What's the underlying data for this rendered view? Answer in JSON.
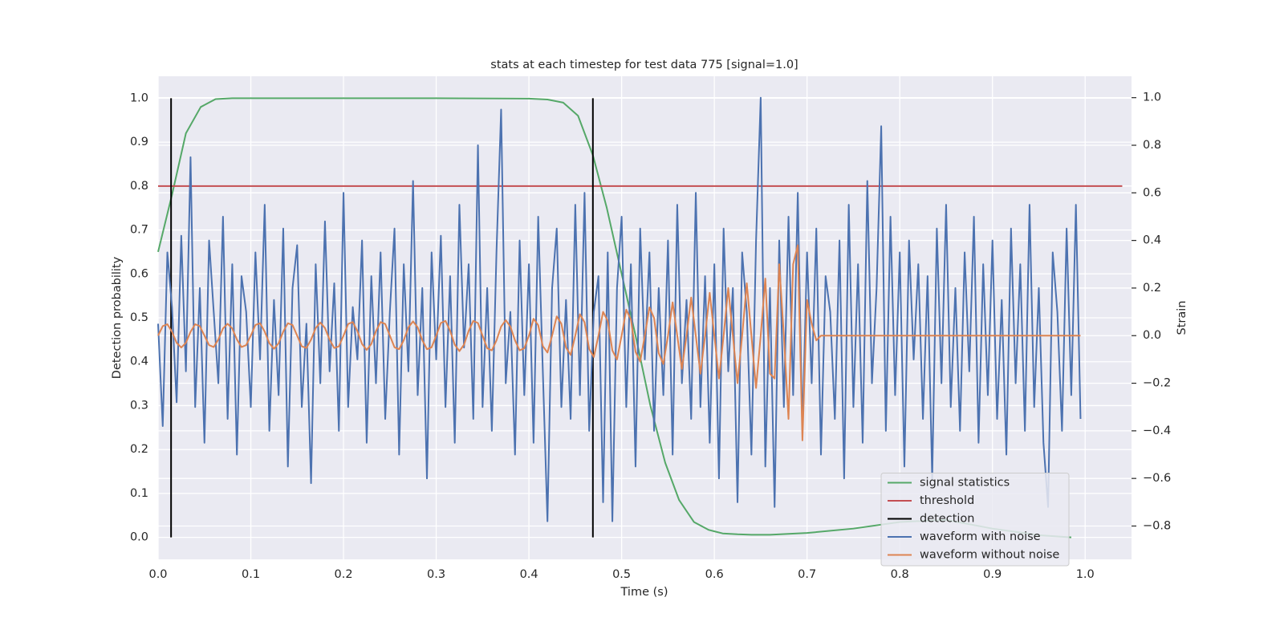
{
  "chart_data": {
    "type": "line",
    "title": "stats at each timestep for test data 775 [signal=1.0]",
    "xlabel": "Time (s)",
    "ylabel": "Detection probability",
    "y2label": "Strain",
    "xlim": [
      0,
      1.05
    ],
    "ylim": [
      -0.05,
      1.05
    ],
    "y2lim": [
      -0.94,
      1.09
    ],
    "xticks": [
      {
        "value": 0,
        "label": "0.0"
      },
      {
        "value": 0.1,
        "label": "0.1"
      },
      {
        "value": 0.2,
        "label": "0.2"
      },
      {
        "value": 0.3,
        "label": "0.3"
      },
      {
        "value": 0.4,
        "label": "0.4"
      },
      {
        "value": 0.5,
        "label": "0.5"
      },
      {
        "value": 0.6,
        "label": "0.6"
      },
      {
        "value": 0.7,
        "label": "0.7"
      },
      {
        "value": 0.8,
        "label": "0.8"
      },
      {
        "value": 0.9,
        "label": "0.9"
      },
      {
        "value": 1,
        "label": "1.0"
      }
    ],
    "yticks": [
      {
        "value": 0,
        "label": "0.0"
      },
      {
        "value": 0.1,
        "label": "0.1"
      },
      {
        "value": 0.2,
        "label": "0.2"
      },
      {
        "value": 0.3,
        "label": "0.3"
      },
      {
        "value": 0.4,
        "label": "0.4"
      },
      {
        "value": 0.5,
        "label": "0.5"
      },
      {
        "value": 0.6,
        "label": "0.6"
      },
      {
        "value": 0.7,
        "label": "0.7"
      },
      {
        "value": 0.8,
        "label": "0.8"
      },
      {
        "value": 0.9,
        "label": "0.9"
      },
      {
        "value": 1,
        "label": "1.0"
      }
    ],
    "y2ticks": [
      {
        "value": -0.8,
        "label": "−0.8"
      },
      {
        "value": -0.6,
        "label": "−0.6"
      },
      {
        "value": -0.4,
        "label": "−0.4"
      },
      {
        "value": -0.2,
        "label": "−0.2"
      },
      {
        "value": 0,
        "label": "0.0"
      },
      {
        "value": 0.2,
        "label": "0.2"
      },
      {
        "value": 0.4,
        "label": "0.4"
      },
      {
        "value": 0.6,
        "label": "0.6"
      },
      {
        "value": 0.8,
        "label": "0.8"
      },
      {
        "value": 1,
        "label": "1.0"
      }
    ],
    "grid": true,
    "legend": "lower right",
    "x": [
      0,
      0.005,
      0.01,
      0.015,
      0.02,
      0.025,
      0.03,
      0.035,
      0.04,
      0.045,
      0.05,
      0.055,
      0.06,
      0.065,
      0.07,
      0.075,
      0.08,
      0.085,
      0.09,
      0.095,
      0.1,
      0.105,
      0.11,
      0.115,
      0.12,
      0.125,
      0.13,
      0.135,
      0.14,
      0.145,
      0.15,
      0.155,
      0.16,
      0.165,
      0.17,
      0.175,
      0.18,
      0.185,
      0.19,
      0.195,
      0.2,
      0.205,
      0.21,
      0.215,
      0.22,
      0.225,
      0.23,
      0.235,
      0.24,
      0.245,
      0.25,
      0.255,
      0.26,
      0.265,
      0.27,
      0.275,
      0.28,
      0.285,
      0.29,
      0.295,
      0.3,
      0.305,
      0.31,
      0.315,
      0.32,
      0.325,
      0.33,
      0.335,
      0.34,
      0.345,
      0.35,
      0.355,
      0.36,
      0.365,
      0.37,
      0.375,
      0.38,
      0.385,
      0.39,
      0.395,
      0.4,
      0.405,
      0.41,
      0.415,
      0.42,
      0.425,
      0.43,
      0.435,
      0.44,
      0.445,
      0.45,
      0.455,
      0.46,
      0.465,
      0.47,
      0.475,
      0.48,
      0.485,
      0.49,
      0.495,
      0.5,
      0.505,
      0.51,
      0.515,
      0.52,
      0.525,
      0.53,
      0.535,
      0.54,
      0.545,
      0.55,
      0.555,
      0.56,
      0.565,
      0.57,
      0.575,
      0.58,
      0.585,
      0.59,
      0.595,
      0.6,
      0.605,
      0.61,
      0.615,
      0.62,
      0.625,
      0.63,
      0.635,
      0.64,
      0.645,
      0.65,
      0.655,
      0.66,
      0.665,
      0.67,
      0.675,
      0.68,
      0.685,
      0.69,
      0.695,
      0.7,
      0.705,
      0.71,
      0.715,
      0.72,
      0.725,
      0.73,
      0.735,
      0.74,
      0.745,
      0.75,
      0.755,
      0.76,
      0.765,
      0.77,
      0.775,
      0.78,
      0.785,
      0.79,
      0.795,
      0.8,
      0.805,
      0.81,
      0.815,
      0.82,
      0.825,
      0.83,
      0.835,
      0.84,
      0.845,
      0.85,
      0.855,
      0.86,
      0.865,
      0.87,
      0.875,
      0.88,
      0.885,
      0.89,
      0.895,
      0.9,
      0.905,
      0.91,
      0.915,
      0.92,
      0.925,
      0.93,
      0.935,
      0.94,
      0.945,
      0.95,
      0.955,
      0.96,
      0.965,
      0.97,
      0.975,
      0.98,
      0.985,
      0.99,
      0.995
    ],
    "series": [
      {
        "name": "signal statistics",
        "color": "#55a868",
        "x": [
          0,
          0.015,
          0.03,
          0.046,
          0.062,
          0.08,
          0.1,
          0.2,
          0.3,
          0.4,
          0.42,
          0.437,
          0.453,
          0.469,
          0.484,
          0.5,
          0.516,
          0.531,
          0.547,
          0.562,
          0.578,
          0.594,
          0.609,
          0.625,
          0.64,
          0.66,
          0.7,
          0.75,
          0.8,
          0.85,
          0.9,
          0.95,
          0.985
        ],
        "values": [
          0.65,
          0.78,
          0.92,
          0.98,
          0.998,
          1.0,
          1.0,
          1.0,
          1.0,
          0.999,
          0.997,
          0.99,
          0.96,
          0.87,
          0.75,
          0.6,
          0.45,
          0.3,
          0.17,
          0.085,
          0.035,
          0.017,
          0.009,
          0.007,
          0.006,
          0.006,
          0.01,
          0.02,
          0.035,
          0.04,
          0.02,
          0.005,
          0.0
        ]
      },
      {
        "name": "threshold",
        "color": "#c44e52",
        "x": [
          0,
          1.04
        ],
        "values": [
          0.8,
          0.8
        ]
      },
      {
        "name": "detection",
        "color": "#000000",
        "kind": "vlines",
        "x": [
          0.014,
          0.469
        ],
        "ymin": 0,
        "ymax": 1
      },
      {
        "name": "waveform with noise",
        "color": "#4c72b0",
        "axis": "y2",
        "values": [
          0.05,
          -0.38,
          0.35,
          0.12,
          -0.28,
          0.42,
          -0.15,
          0.75,
          -0.3,
          0.2,
          -0.45,
          0.4,
          0.1,
          -0.2,
          0.5,
          -0.35,
          0.3,
          -0.5,
          0.25,
          0.1,
          -0.3,
          0.35,
          -0.1,
          0.55,
          -0.4,
          0.15,
          -0.25,
          0.45,
          -0.55,
          0.2,
          0.38,
          -0.3,
          0.05,
          -0.62,
          0.3,
          -0.2,
          0.48,
          -0.15,
          0.22,
          -0.4,
          0.6,
          -0.3,
          0.12,
          -0.1,
          0.4,
          -0.45,
          0.25,
          -0.2,
          0.35,
          -0.35,
          0.1,
          0.45,
          -0.5,
          0.3,
          -0.15,
          0.65,
          -0.25,
          0.2,
          -0.6,
          0.35,
          -0.1,
          0.42,
          -0.3,
          0.25,
          -0.45,
          0.55,
          -0.05,
          0.3,
          -0.35,
          0.8,
          -0.3,
          0.2,
          -0.4,
          0.35,
          0.95,
          -0.2,
          0.1,
          -0.5,
          0.4,
          -0.25,
          0.3,
          -0.45,
          0.5,
          -0.15,
          -0.78,
          0.2,
          0.45,
          -0.3,
          0.15,
          -0.35,
          0.55,
          -0.25,
          0.6,
          -0.4,
          0.1,
          0.25,
          -0.7,
          0.35,
          -0.78,
          0.2,
          0.5,
          -0.3,
          0.3,
          -0.55,
          0.45,
          -0.1,
          0.35,
          -0.4,
          0.2,
          -0.25,
          0.4,
          -0.5,
          0.55,
          -0.2,
          0.15,
          -0.35,
          0.6,
          -0.3,
          0.25,
          -0.45,
          0.3,
          -0.6,
          0.45,
          -0.15,
          0.2,
          -0.7,
          0.35,
          0.1,
          -0.5,
          0.4,
          1.0,
          -0.55,
          0.2,
          -0.72,
          0.4,
          -0.3,
          0.5,
          -0.25,
          0.6,
          -0.4,
          0.35,
          -0.2,
          0.45,
          -0.5,
          0.25,
          0.1,
          -0.35,
          0.4,
          -0.6,
          0.55,
          -0.3,
          0.3,
          -0.45,
          0.65,
          -0.2,
          0.2,
          0.88,
          -0.4,
          0.5,
          -0.25,
          0.35,
          -0.55,
          0.4,
          -0.1,
          0.3,
          -0.35,
          0.25,
          -0.6,
          0.45,
          -0.2,
          0.55,
          -0.3,
          0.2,
          -0.4,
          0.35,
          -0.15,
          0.5,
          -0.45,
          0.3,
          -0.25,
          0.4,
          -0.35,
          0.15,
          -0.5,
          0.45,
          -0.2,
          0.3,
          -0.4,
          0.55,
          -0.3,
          0.2,
          -0.45,
          -0.72,
          0.35,
          0.1,
          -0.4,
          0.45,
          -0.25,
          0.55,
          -0.35
        ]
      },
      {
        "name": "waveform without noise",
        "color": "#dd8452",
        "axis": "y2",
        "values": [
          0,
          0.04,
          0.048,
          0.016,
          -0.03,
          -0.05,
          -0.03,
          0.016,
          0.048,
          0.04,
          0,
          -0.04,
          -0.048,
          -0.016,
          0.03,
          0.05,
          0.03,
          -0.016,
          -0.048,
          -0.04,
          0,
          0.045,
          0.052,
          0.017,
          -0.032,
          -0.055,
          -0.032,
          0.017,
          0.052,
          0.045,
          0,
          -0.045,
          -0.052,
          -0.017,
          0.032,
          0.055,
          0.032,
          -0.017,
          -0.052,
          -0.045,
          0,
          0.049,
          0.057,
          0.019,
          -0.035,
          -0.06,
          -0.035,
          0.019,
          0.057,
          0.049,
          0,
          -0.049,
          -0.057,
          -0.019,
          0.035,
          0.06,
          0.035,
          -0.019,
          -0.057,
          -0.049,
          0,
          0.053,
          0.062,
          0.02,
          -0.038,
          -0.065,
          -0.038,
          0.02,
          0.062,
          0.053,
          0,
          -0.053,
          -0.062,
          -0.02,
          0.038,
          0.065,
          0.038,
          -0.02,
          -0.062,
          -0.053,
          0,
          0.071,
          0.044,
          -0.044,
          -0.071,
          0,
          0.081,
          0.05,
          -0.05,
          -0.081,
          0,
          0.09,
          0.056,
          -0.056,
          -0.09,
          0,
          0.1,
          0.062,
          -0.062,
          -0.1,
          0,
          0.109,
          0.068,
          -0.068,
          -0.109,
          0,
          0.119,
          0.074,
          -0.074,
          -0.119,
          0,
          0.14,
          0,
          -0.14,
          0,
          0.16,
          0,
          -0.16,
          0,
          0.18,
          0,
          -0.18,
          0,
          0.2,
          0,
          -0.2,
          0,
          0.22,
          0,
          -0.22,
          0,
          0.24,
          -0.16,
          -0.18,
          0.3,
          0,
          -0.35,
          0.3,
          0.38,
          -0.44,
          0.15,
          0.05,
          -0.02,
          0,
          0,
          0,
          0,
          0,
          0,
          0,
          0,
          0,
          0,
          0,
          0,
          0,
          0,
          0,
          0,
          0,
          0,
          0,
          0,
          0,
          0,
          0,
          0,
          0,
          0,
          0,
          0,
          0,
          0,
          0,
          0,
          0,
          0,
          0,
          0,
          0,
          0,
          0,
          0,
          0,
          0,
          0,
          0,
          0,
          0,
          0,
          0,
          0,
          0,
          0,
          0,
          0,
          0,
          0,
          0,
          0
        ]
      }
    ]
  }
}
